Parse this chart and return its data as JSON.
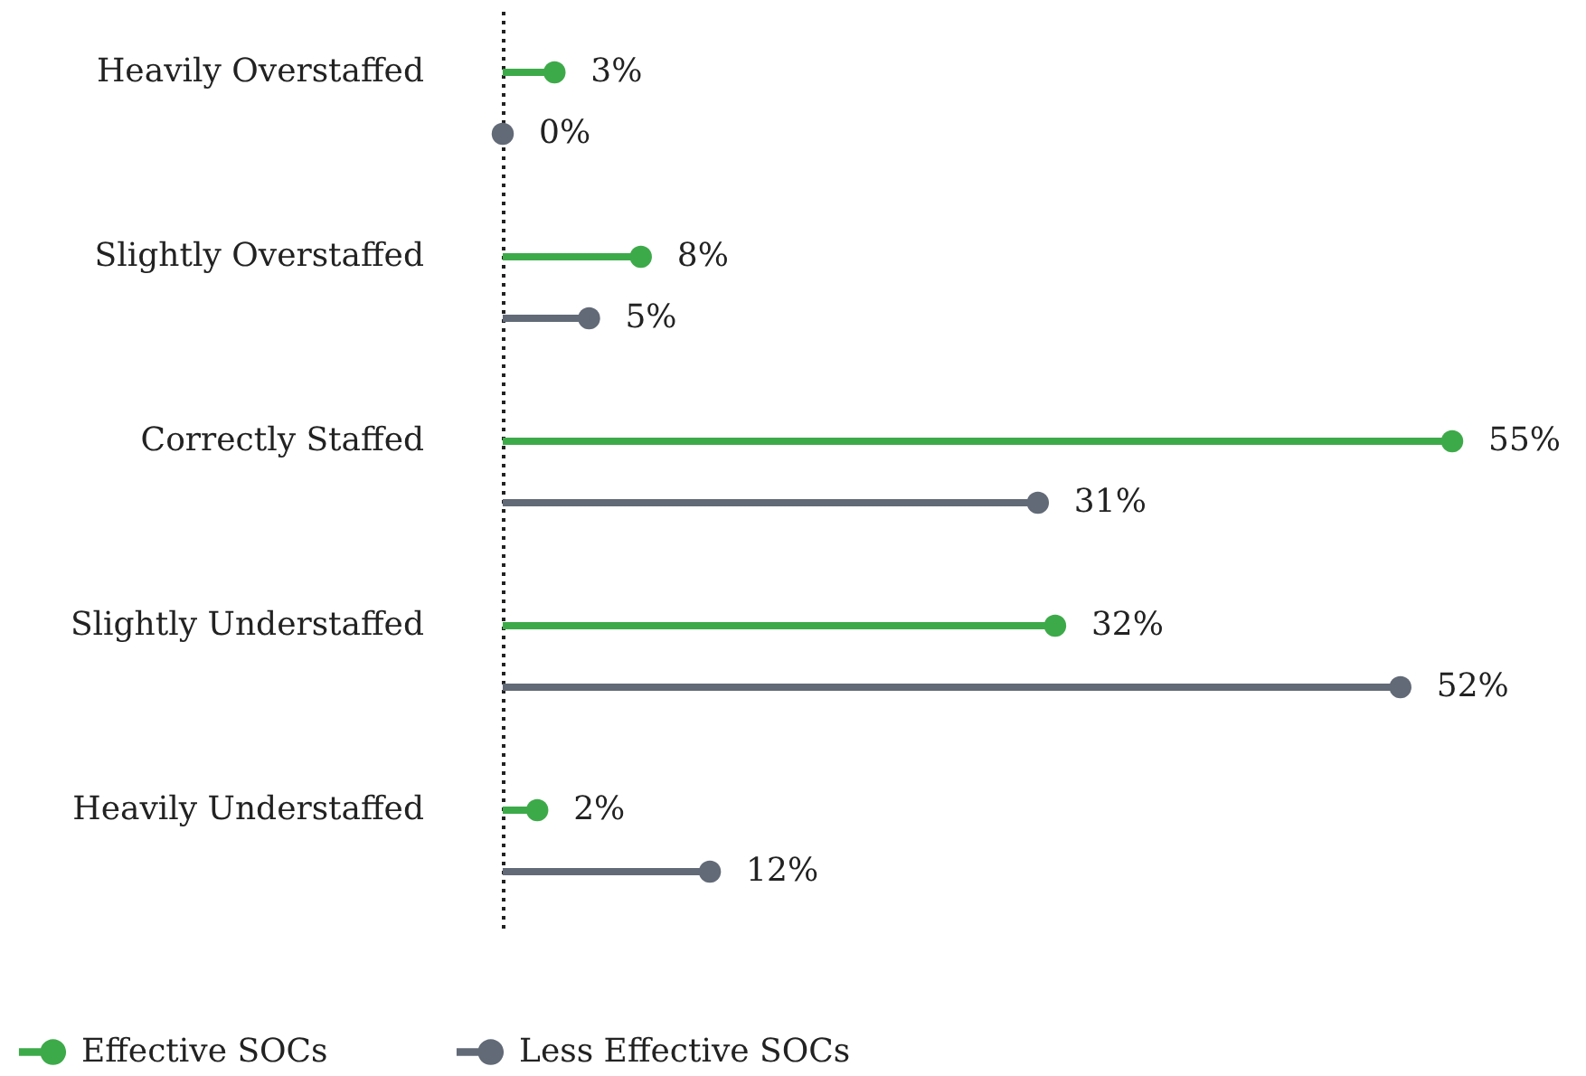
{
  "chart_data": {
    "type": "lollipop",
    "orientation": "horizontal",
    "tick_labels": "y",
    "legend": "bottom left",
    "categories": [
      "Heavily Overstaffed",
      "Slightly Overstaffed",
      "Correctly Staffed",
      "Slightly Understaffed",
      "Heavily Understaffed"
    ],
    "series": [
      {
        "name": "Effective SOCs",
        "color": "#3daa49",
        "values": [
          3,
          8,
          55,
          32,
          2
        ],
        "value_labels": [
          "3%",
          "8%",
          "55%",
          "32%",
          "2%"
        ]
      },
      {
        "name": "Less Effective SOCs",
        "color": "#626a77",
        "values": [
          0,
          5,
          31,
          52,
          12
        ],
        "value_labels": [
          "0%",
          "5%",
          "31%",
          "52%",
          "12%"
        ]
      }
    ]
  }
}
